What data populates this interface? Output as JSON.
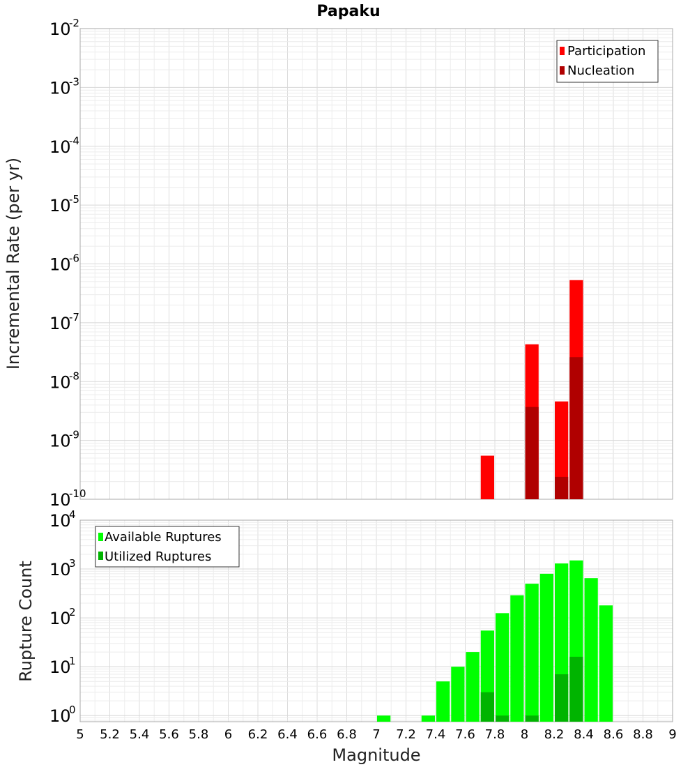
{
  "chart_data": [
    {
      "type": "bar",
      "title": "Papaku",
      "xlabel": "",
      "ylabel": "Incremental Rate (per yr)",
      "yscale": "log",
      "xlim": [
        5,
        9
      ],
      "ylim": [
        1e-10,
        0.01
      ],
      "yticks": [
        {
          "base": "10",
          "exp": "-2",
          "value": 0.01
        },
        {
          "base": "10",
          "exp": "-3",
          "value": 0.001
        },
        {
          "base": "10",
          "exp": "-4",
          "value": 0.0001
        },
        {
          "base": "10",
          "exp": "-5",
          "value": 1e-05
        },
        {
          "base": "10",
          "exp": "-6",
          "value": 1e-06
        },
        {
          "base": "10",
          "exp": "-7",
          "value": 1e-07
        },
        {
          "base": "10",
          "exp": "-8",
          "value": 1e-08
        },
        {
          "base": "10",
          "exp": "-9",
          "value": 1e-09
        },
        {
          "base": "10",
          "exp": "-10",
          "value": 1e-10
        }
      ],
      "grid": true,
      "legend_position": "top-right",
      "series": [
        {
          "name": "Participation",
          "color": "#ff0000",
          "x": [
            7.75,
            8.05,
            8.25,
            8.35
          ],
          "values": [
            5.5e-10,
            4.3e-08,
            4.6e-09,
            5.3e-07
          ]
        },
        {
          "name": "Nucleation",
          "color": "#b00000",
          "x": [
            8.05,
            8.25,
            8.35
          ],
          "values": [
            3.7e-09,
            2.4e-10,
            2.6e-08
          ]
        }
      ]
    },
    {
      "type": "bar",
      "title": "",
      "xlabel": "Magnitude",
      "ylabel": "Rupture Count",
      "yscale": "log",
      "xlim": [
        5,
        9
      ],
      "ylim": [
        0.75,
        10000
      ],
      "xticks": [
        "5",
        "5.2",
        "5.4",
        "5.6",
        "5.8",
        "6",
        "6.2",
        "6.4",
        "6.6",
        "6.8",
        "7",
        "7.2",
        "7.4",
        "7.6",
        "7.8",
        "8",
        "8.2",
        "8.4",
        "8.6",
        "8.8",
        "9"
      ],
      "yticks": [
        {
          "base": "10",
          "exp": "4",
          "value": 10000
        },
        {
          "base": "10",
          "exp": "3",
          "value": 1000
        },
        {
          "base": "10",
          "exp": "2",
          "value": 100
        },
        {
          "base": "10",
          "exp": "1",
          "value": 10
        },
        {
          "base": "10",
          "exp": "0",
          "value": 1
        }
      ],
      "grid": true,
      "legend_position": "top-left",
      "series": [
        {
          "name": "Available Ruptures",
          "color": "#00ff00",
          "x": [
            7.05,
            7.35,
            7.45,
            7.55,
            7.65,
            7.75,
            7.85,
            7.95,
            8.05,
            8.15,
            8.25,
            8.35,
            8.45,
            8.55
          ],
          "values": [
            1,
            1,
            5,
            10,
            20,
            55,
            125,
            290,
            500,
            800,
            1300,
            1500,
            650,
            180
          ]
        },
        {
          "name": "Utilized Ruptures",
          "color": "#00b400",
          "x": [
            7.75,
            7.85,
            8.05,
            8.25,
            8.35
          ],
          "values": [
            3,
            1,
            1,
            7,
            16
          ]
        }
      ]
    }
  ]
}
